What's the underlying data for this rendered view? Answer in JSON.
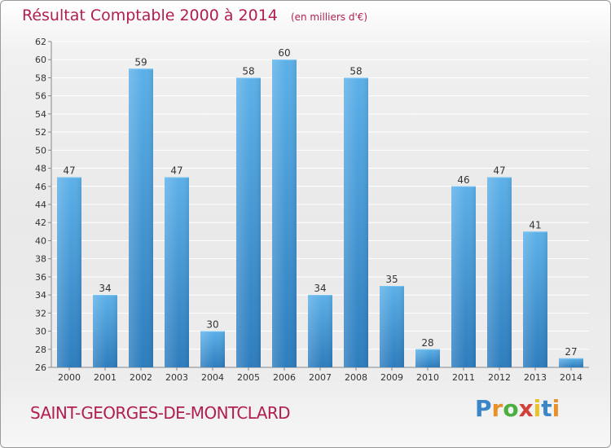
{
  "title": "Résultat Comptable 2000 à 2014",
  "subtitle": "(en milliers d'€)",
  "commune": "SAINT-GEORGES-DE-MONTCLARD",
  "logo": {
    "letters": [
      "P",
      "r",
      "o",
      "x",
      "i",
      "t",
      "i"
    ],
    "colors": [
      "#3b86c8",
      "#e8912a",
      "#4cae3f",
      "#d2403a",
      "#e8c22a",
      "#3b86c8",
      "#e8912a"
    ]
  },
  "colors": {
    "accent": "#b01e52",
    "bar_light": "#5aaee6",
    "bar_dark": "#2f7fc0",
    "grid": "#ffffff",
    "text": "#333333"
  },
  "chart_data": {
    "type": "bar",
    "title": "Résultat Comptable 2000 à 2014",
    "subtitle": "(en milliers d'€)",
    "categories": [
      "2000",
      "2001",
      "2002",
      "2003",
      "2004",
      "2005",
      "2006",
      "2007",
      "2008",
      "2009",
      "2010",
      "2011",
      "2012",
      "2013",
      "2014"
    ],
    "values": [
      47,
      34,
      59,
      47,
      30,
      58,
      60,
      34,
      58,
      35,
      28,
      46,
      47,
      41,
      27
    ],
    "ylim": [
      26,
      62
    ],
    "yticks": [
      26,
      28,
      30,
      32,
      34,
      36,
      38,
      40,
      42,
      44,
      46,
      48,
      50,
      52,
      54,
      56,
      58,
      60,
      62
    ],
    "grid": true,
    "data_labels": true
  }
}
